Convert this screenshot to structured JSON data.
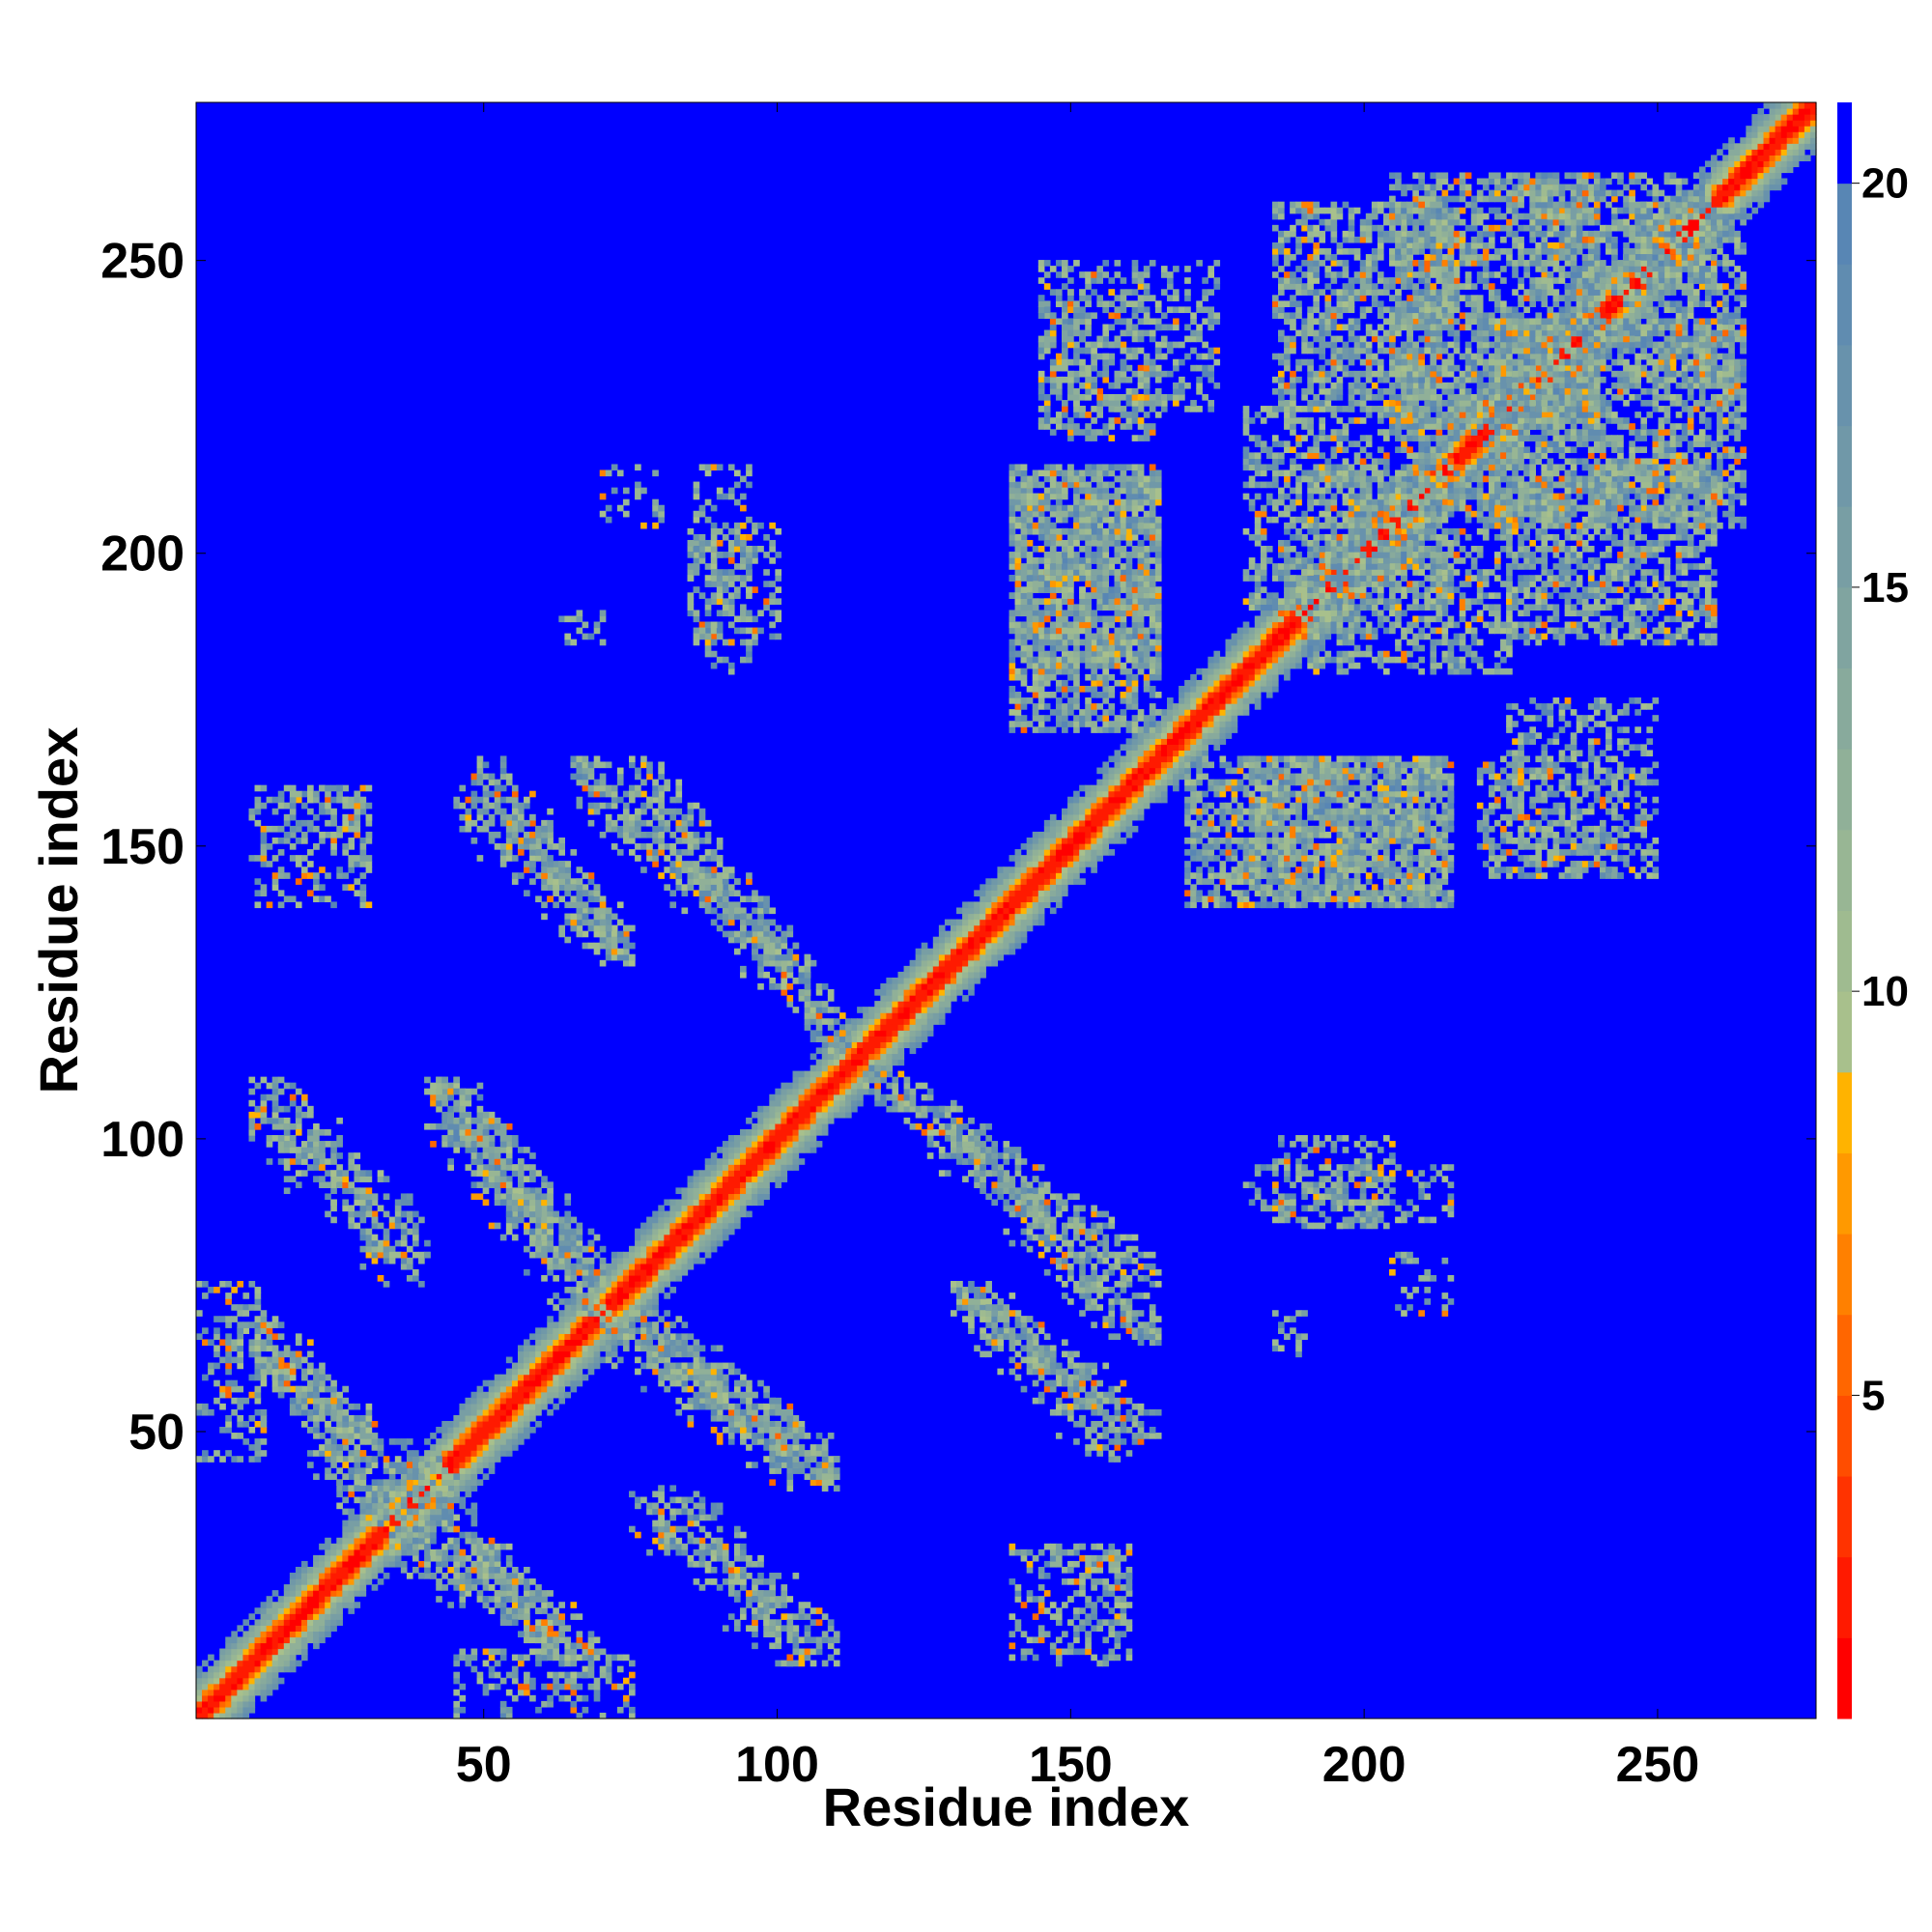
{
  "chart_data": {
    "type": "heatmap",
    "title": "",
    "xlabel": "Residue index",
    "ylabel": "Residue index",
    "xlim": [
      1,
      277
    ],
    "ylim": [
      1,
      277
    ],
    "xticks": [
      50,
      100,
      150,
      200,
      250
    ],
    "yticks": [
      50,
      100,
      150,
      200,
      250
    ],
    "colorbar": {
      "ticks": [
        5,
        10,
        15,
        20
      ],
      "range": [
        1,
        21
      ],
      "levels": [
        {
          "max": 2,
          "color": "#ff0000"
        },
        {
          "max": 3,
          "color": "#ff1a00"
        },
        {
          "max": 4,
          "color": "#ff3300"
        },
        {
          "max": 5,
          "color": "#ff4d00"
        },
        {
          "max": 6,
          "color": "#ff6600"
        },
        {
          "max": 7,
          "color": "#ff8000"
        },
        {
          "max": 8,
          "color": "#ff9900"
        },
        {
          "max": 9,
          "color": "#ffb300"
        },
        {
          "max": 10,
          "color": "#a8c08c"
        },
        {
          "max": 11,
          "color": "#9fbb90"
        },
        {
          "max": 12,
          "color": "#98b694"
        },
        {
          "max": 13,
          "color": "#90b098"
        },
        {
          "max": 14,
          "color": "#88aa9c"
        },
        {
          "max": 15,
          "color": "#80a4a0"
        },
        {
          "max": 16,
          "color": "#789ea4"
        },
        {
          "max": 17,
          "color": "#7098a8"
        },
        {
          "max": 18,
          "color": "#6892ac"
        },
        {
          "max": 19,
          "color": "#608cb0"
        },
        {
          "max": 20,
          "color": "#5886b4"
        },
        {
          "max": 21,
          "color": "#0000ff"
        }
      ]
    },
    "background_value": 21,
    "diagonal_band": {
      "half_width": 8
    },
    "contact_regions": [
      {
        "x": [
          1,
          12
        ],
        "y": [
          45,
          75
        ],
        "density": 0.3
      },
      {
        "x": [
          8,
          30
        ],
        "y": [
          45,
          70
        ],
        "orientation": "anti",
        "density": 0.7
      },
      {
        "x": [
          20,
          45
        ],
        "y": [
          25,
          50
        ],
        "orientation": "anti",
        "density": 0.7
      },
      {
        "x": [
          38,
          62
        ],
        "y": [
          10,
          45
        ],
        "orientation": "anti",
        "density": 0.7
      },
      {
        "x": [
          10,
          40
        ],
        "y": [
          75,
          105
        ],
        "orientation": "anti",
        "density": 0.55
      },
      {
        "x": [
          42,
          70
        ],
        "y": [
          75,
          110
        ],
        "orientation": "anti",
        "density": 0.75
      },
      {
        "x": [
          70,
          110
        ],
        "y": [
          40,
          70
        ],
        "orientation": "anti",
        "density": 0.75
      },
      {
        "x": [
          80,
          110
        ],
        "y": [
          10,
          40
        ],
        "orientation": "anti",
        "density": 0.55
      },
      {
        "x": [
          48,
          75
        ],
        "y": [
          130,
          165
        ],
        "orientation": "anti",
        "density": 0.7
      },
      {
        "x": [
          75,
          112
        ],
        "y": [
          115,
          165
        ],
        "orientation": "anti",
        "density": 0.75
      },
      {
        "x": [
          125,
          165
        ],
        "y": [
          65,
          105
        ],
        "orientation": "anti",
        "density": 0.75
      },
      {
        "x": [
          130,
          160
        ],
        "y": [
          45,
          75
        ],
        "orientation": "anti",
        "density": 0.55
      },
      {
        "x": [
          10,
          30
        ],
        "y": [
          140,
          160
        ],
        "density": 0.35
      },
      {
        "x": [
          140,
          165
        ],
        "y": [
          180,
          215
        ],
        "density": 0.6
      },
      {
        "x": [
          145,
          175
        ],
        "y": [
          225,
          250
        ],
        "density": 0.35
      },
      {
        "x": [
          170,
          215
        ],
        "y": [
          140,
          165
        ],
        "density": 0.6
      },
      {
        "x": [
          190,
          225
        ],
        "y": [
          180,
          215
        ],
        "density": 0.5
      },
      {
        "x": [
          205,
          240
        ],
        "y": [
          220,
          265
        ],
        "density": 0.65
      },
      {
        "x": [
          225,
          260
        ],
        "y": [
          185,
          215
        ],
        "density": 0.6
      },
      {
        "x": [
          220,
          245
        ],
        "y": [
          145,
          165
        ],
        "density": 0.45
      },
      {
        "x": [
          245,
          265
        ],
        "y": [
          230,
          260
        ],
        "density": 0.5
      },
      {
        "x": [
          85,
          100
        ],
        "y": [
          185,
          205
        ],
        "density": 0.35
      },
      {
        "x": [
          70,
          80
        ],
        "y": [
          205,
          215
        ],
        "density": 0.25
      },
      {
        "x": [
          180,
          215
        ],
        "y": [
          85,
          95
        ],
        "density": 0.3
      },
      {
        "x": [
          150,
          160
        ],
        "y": [
          15,
          30
        ],
        "density": 0.35
      },
      {
        "x": [
          185,
          190
        ],
        "y": [
          62,
          70
        ],
        "density": 0.3
      }
    ]
  }
}
